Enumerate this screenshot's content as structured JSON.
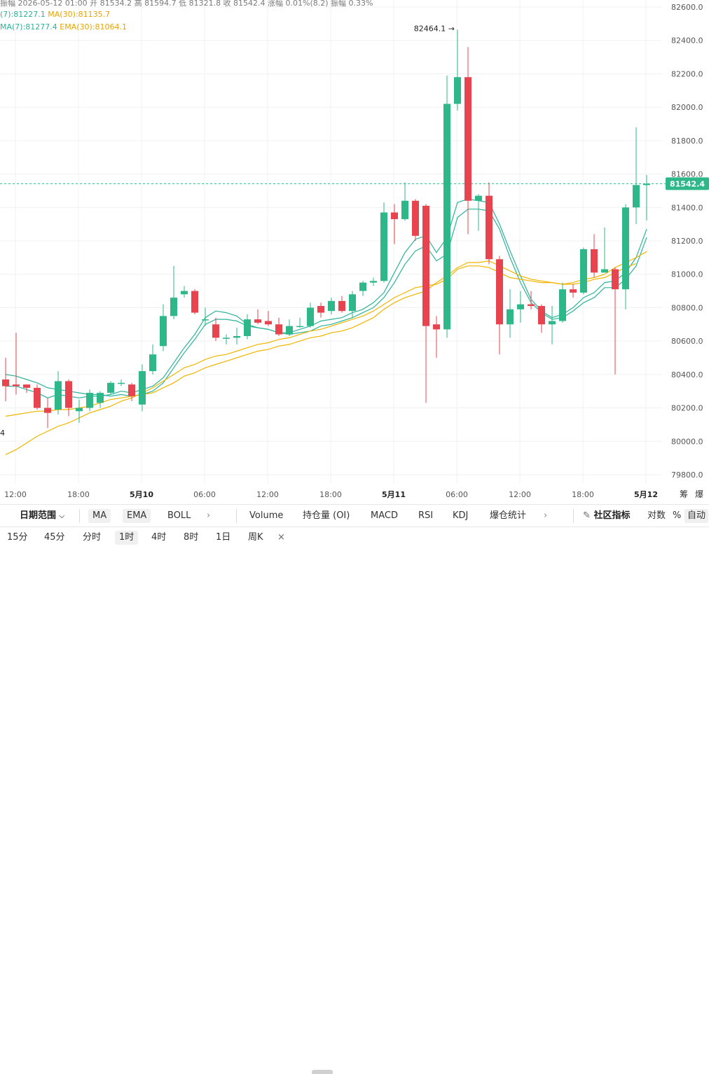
{
  "header": {
    "info_text": "振幅  2026-05-12 01:00  开 81534.2  高 81594.7  低 81321.8  收 81542.4  涨幅 0.01%(8.2)  振幅 0.33%",
    "ma_line": {
      "ma7": "(7):81227.1",
      "ma30": "MA(30):81135.7"
    },
    "ema_line": {
      "ema7": "MA(7):81277.4",
      "ema30": "EMA(30):81064.1"
    }
  },
  "colors": {
    "up": "#2eb88a",
    "down": "#e8444f",
    "line_teal": "#2bb39a",
    "line_orange": "#f0b400",
    "grid": "#f0f0f0"
  },
  "chart_data": {
    "type": "candlestick",
    "title": "",
    "ylim": [
      79700,
      82700
    ],
    "y_ticks": [
      "82600.0",
      "82400.0",
      "82200.0",
      "82000.0",
      "81800.0",
      "81600.0",
      "81400.0",
      "81200.0",
      "81000.0",
      "80800.0",
      "80600.0",
      "80400.0",
      "80200.0",
      "80000.0",
      "79800.0"
    ],
    "x_ticks": [
      "12:00",
      "18:00",
      "5月10",
      "06:00",
      "12:00",
      "18:00",
      "5月11",
      "06:00",
      "12:00",
      "18:00",
      "5月12"
    ],
    "last_price": "81542.4",
    "high_marker": "82464.1 →",
    "low_marker_partial": "4",
    "candles": [
      {
        "o": 80370,
        "c": 80330,
        "h": 80500,
        "l": 80240
      },
      {
        "o": 80340,
        "c": 80330,
        "h": 80650,
        "l": 80280
      },
      {
        "o": 80340,
        "c": 80320,
        "h": 80340,
        "l": 80290
      },
      {
        "o": 80320,
        "c": 80200,
        "h": 80340,
        "l": 80190
      },
      {
        "o": 80200,
        "c": 80170,
        "h": 80260,
        "l": 80080
      },
      {
        "o": 80190,
        "c": 80360,
        "h": 80420,
        "l": 80160
      },
      {
        "o": 80360,
        "c": 80200,
        "h": 80370,
        "l": 80150
      },
      {
        "o": 80180,
        "c": 80200,
        "h": 80250,
        "l": 80110
      },
      {
        "o": 80200,
        "c": 80290,
        "h": 80310,
        "l": 80180
      },
      {
        "o": 80230,
        "c": 80290,
        "h": 80300,
        "l": 80200
      },
      {
        "o": 80290,
        "c": 80350,
        "h": 80360,
        "l": 80280
      },
      {
        "o": 80350,
        "c": 80350,
        "h": 80370,
        "l": 80330
      },
      {
        "o": 80340,
        "c": 80270,
        "h": 80350,
        "l": 80240
      },
      {
        "o": 80220,
        "c": 80420,
        "h": 80460,
        "l": 80180
      },
      {
        "o": 80420,
        "c": 80520,
        "h": 80580,
        "l": 80400
      },
      {
        "o": 80570,
        "c": 80750,
        "h": 80820,
        "l": 80540
      },
      {
        "o": 80750,
        "c": 80860,
        "h": 81050,
        "l": 80730
      },
      {
        "o": 80880,
        "c": 80900,
        "h": 80930,
        "l": 80860
      },
      {
        "o": 80900,
        "c": 80770,
        "h": 80910,
        "l": 80760
      },
      {
        "o": 80730,
        "c": 80730,
        "h": 80800,
        "l": 80690
      },
      {
        "o": 80700,
        "c": 80620,
        "h": 80740,
        "l": 80600
      },
      {
        "o": 80620,
        "c": 80620,
        "h": 80640,
        "l": 80580
      },
      {
        "o": 80620,
        "c": 80630,
        "h": 80680,
        "l": 80580
      },
      {
        "o": 80630,
        "c": 80730,
        "h": 80760,
        "l": 80610
      },
      {
        "o": 80730,
        "c": 80710,
        "h": 80790,
        "l": 80700
      },
      {
        "o": 80720,
        "c": 80700,
        "h": 80780,
        "l": 80690
      },
      {
        "o": 80700,
        "c": 80640,
        "h": 80740,
        "l": 80630
      },
      {
        "o": 80640,
        "c": 80690,
        "h": 80730,
        "l": 80630
      },
      {
        "o": 80690,
        "c": 80690,
        "h": 80740,
        "l": 80680
      },
      {
        "o": 80690,
        "c": 80800,
        "h": 80830,
        "l": 80680
      },
      {
        "o": 80810,
        "c": 80770,
        "h": 80830,
        "l": 80740
      },
      {
        "o": 80780,
        "c": 80840,
        "h": 80860,
        "l": 80760
      },
      {
        "o": 80840,
        "c": 80780,
        "h": 80870,
        "l": 80770
      },
      {
        "o": 80780,
        "c": 80880,
        "h": 80900,
        "l": 80740
      },
      {
        "o": 80900,
        "c": 80950,
        "h": 80960,
        "l": 80870
      },
      {
        "o": 80950,
        "c": 80960,
        "h": 80980,
        "l": 80930
      },
      {
        "o": 80960,
        "c": 81370,
        "h": 81430,
        "l": 80950
      },
      {
        "o": 81370,
        "c": 81330,
        "h": 81420,
        "l": 81180
      },
      {
        "o": 81330,
        "c": 81440,
        "h": 81550,
        "l": 81320
      },
      {
        "o": 81440,
        "c": 81230,
        "h": 81450,
        "l": 81200
      },
      {
        "o": 81410,
        "c": 80690,
        "h": 81420,
        "l": 80230
      },
      {
        "o": 80700,
        "c": 80670,
        "h": 80750,
        "l": 80500
      },
      {
        "o": 80670,
        "c": 82020,
        "h": 82190,
        "l": 80620
      },
      {
        "o": 82020,
        "c": 82180,
        "h": 82464,
        "l": 81980
      },
      {
        "o": 82180,
        "c": 81440,
        "h": 82360,
        "l": 81240
      },
      {
        "o": 81440,
        "c": 81470,
        "h": 81480,
        "l": 81260
      },
      {
        "o": 81470,
        "c": 81090,
        "h": 81550,
        "l": 81060
      },
      {
        "o": 81090,
        "c": 80700,
        "h": 81110,
        "l": 80520
      },
      {
        "o": 80700,
        "c": 80790,
        "h": 80910,
        "l": 80620
      },
      {
        "o": 80790,
        "c": 80820,
        "h": 80900,
        "l": 80710
      },
      {
        "o": 80820,
        "c": 80810,
        "h": 80900,
        "l": 80790
      },
      {
        "o": 80810,
        "c": 80700,
        "h": 80820,
        "l": 80650
      },
      {
        "o": 80700,
        "c": 80720,
        "h": 80810,
        "l": 80580
      },
      {
        "o": 80720,
        "c": 80910,
        "h": 80950,
        "l": 80710
      },
      {
        "o": 80910,
        "c": 80890,
        "h": 80940,
        "l": 80860
      },
      {
        "o": 80890,
        "c": 81150,
        "h": 81160,
        "l": 80880
      },
      {
        "o": 81150,
        "c": 81010,
        "h": 81240,
        "l": 80980
      },
      {
        "o": 81010,
        "c": 81030,
        "h": 81280,
        "l": 81010
      },
      {
        "o": 81030,
        "c": 80910,
        "h": 81040,
        "l": 80400
      },
      {
        "o": 80910,
        "c": 81400,
        "h": 81420,
        "l": 80790
      },
      {
        "o": 81400,
        "c": 81534,
        "h": 81880,
        "l": 81300
      },
      {
        "o": 81534,
        "c": 81542,
        "h": 81595,
        "l": 81322
      }
    ],
    "series": [
      {
        "values": [
          80330,
          80330,
          80310,
          80290,
          80260,
          80280,
          80270,
          80260,
          80270,
          80270,
          80280,
          80300,
          80290,
          80310,
          80330,
          80380,
          80470,
          80560,
          80640,
          80740,
          80780,
          80770,
          80750,
          80700,
          80680,
          80670,
          80650,
          80650,
          80670,
          80690,
          80720,
          80730,
          80740,
          80770,
          80790,
          80830,
          80890,
          81010,
          81130,
          81210,
          81230,
          81130,
          81220,
          81430,
          81450,
          81440,
          81430,
          81300,
          81140,
          80990,
          80850,
          80780,
          80740,
          80760,
          80800,
          80860,
          80890,
          80950,
          80960,
          81010,
          81100,
          81270
        ]
      },
      {
        "values": [
          80400,
          80390,
          80370,
          80350,
          80320,
          80310,
          80300,
          80290,
          80280,
          80280,
          80270,
          80280,
          80270,
          80280,
          80300,
          80350,
          80440,
          80530,
          80610,
          80700,
          80730,
          80730,
          80720,
          80690,
          80680,
          80670,
          80650,
          80640,
          80650,
          80660,
          80690,
          80700,
          80720,
          80740,
          80770,
          80800,
          80860,
          80950,
          81060,
          81140,
          81170,
          81080,
          81120,
          81340,
          81390,
          81390,
          81380,
          81270,
          81100,
          80950,
          80830,
          80770,
          80730,
          80740,
          80780,
          80830,
          80860,
          80920,
          80920,
          80970,
          81050,
          81220
        ]
      },
      {
        "values": [
          80150,
          80160,
          80170,
          80180,
          80180,
          80190,
          80190,
          80200,
          80210,
          80230,
          80250,
          80260,
          80270,
          80280,
          80290,
          80320,
          80350,
          80390,
          80410,
          80440,
          80460,
          80480,
          80500,
          80520,
          80540,
          80550,
          80570,
          80580,
          80600,
          80620,
          80630,
          80650,
          80660,
          80680,
          80710,
          80740,
          80790,
          80830,
          80860,
          80880,
          80900,
          80950,
          80990,
          81040,
          81070,
          81070,
          81080,
          81050,
          81020,
          80990,
          80970,
          80960,
          80950,
          80940,
          80950,
          80970,
          80980,
          81000,
          81040,
          81070,
          81100,
          81136
        ]
      },
      {
        "values": [
          79920,
          79950,
          79990,
          80030,
          80060,
          80090,
          80110,
          80140,
          80170,
          80190,
          80210,
          80240,
          80260,
          80290,
          80320,
          80360,
          80400,
          80440,
          80460,
          80490,
          80510,
          80520,
          80540,
          80560,
          80580,
          80590,
          80610,
          80620,
          80640,
          80660,
          80670,
          80690,
          80710,
          80730,
          80750,
          80780,
          80820,
          80860,
          80890,
          80920,
          80930,
          80940,
          80970,
          81030,
          81050,
          81050,
          81040,
          81010,
          80980,
          80970,
          80960,
          80950,
          80950,
          80940,
          80940,
          80950,
          80970,
          80980,
          81010,
          81040,
          81064
        ]
      }
    ]
  },
  "toolbar": {
    "date_range": "日期范围",
    "ma": "MA",
    "ema": "EMA",
    "boll": "BOLL",
    "more1": "›",
    "volume": "Volume",
    "oi": "持仓量 (OI)",
    "macd": "MACD",
    "rsi": "RSI",
    "kdj": "KDJ",
    "liq": "爆仓统计",
    "more2": "›",
    "community": "社区指标",
    "log": "对数",
    "percent": "%",
    "auto": "自动",
    "right_glyph1": "筹",
    "right_glyph2": "爆"
  },
  "intervals": {
    "m15": "15分",
    "m45": "45分",
    "timeline": "分时",
    "h1": "1时",
    "h4": "4时",
    "h8": "8时",
    "d1": "1日",
    "week": "周K",
    "close": "×"
  }
}
